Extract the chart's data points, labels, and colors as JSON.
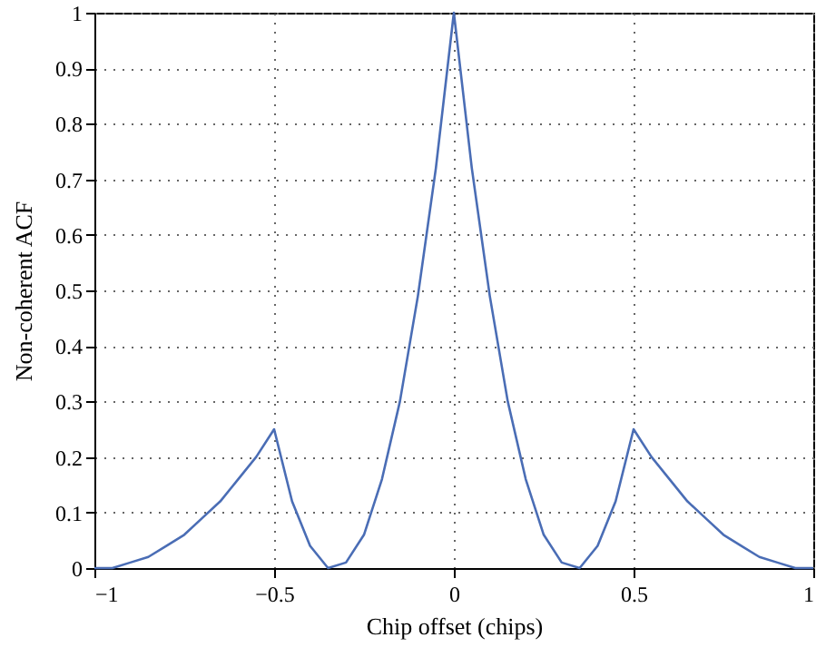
{
  "chart_data": {
    "type": "line",
    "xlabel": "Chip offset (chips)",
    "ylabel": "Non-coherent ACF",
    "x": [
      -1,
      -0.95,
      -0.9,
      -0.85,
      -0.8,
      -0.75,
      -0.7,
      -0.65,
      -0.6,
      -0.55,
      -0.5,
      -0.45,
      -0.4,
      -0.35,
      -0.3,
      -0.25,
      -0.2,
      -0.15,
      -0.1,
      -0.05,
      0,
      0.05,
      0.1,
      0.15,
      0.2,
      0.25,
      0.3,
      0.35,
      0.4,
      0.45,
      0.5,
      0.55,
      0.6,
      0.65,
      0.7,
      0.75,
      0.8,
      0.85,
      0.9,
      0.95,
      1
    ],
    "series": [
      {
        "color": "#4a6db5",
        "values": [
          0,
          0,
          0.01,
          0.02,
          0.04,
          0.06,
          0.09,
          0.12,
          0.16,
          0.2,
          0.25,
          0.12,
          0.04,
          0,
          0.01,
          0.06,
          0.16,
          0.3,
          0.49,
          0.72,
          1,
          0.72,
          0.49,
          0.3,
          0.16,
          0.06,
          0.01,
          0,
          0.04,
          0.12,
          0.25,
          0.2,
          0.16,
          0.12,
          0.09,
          0.06,
          0.04,
          0.02,
          0.01,
          0,
          0
        ]
      }
    ],
    "xlim": [
      -1,
      1
    ],
    "xticks": [
      {
        "value": -1,
        "label": "−1"
      },
      {
        "value": -0.5,
        "label": "−0.5"
      },
      0,
      0.5,
      1
    ],
    "ylim": [
      0,
      1
    ],
    "yticks": [
      0,
      0.1,
      0.2,
      0.3,
      0.4,
      0.5,
      0.6,
      0.7,
      0.8,
      0.9,
      1
    ],
    "grid": true,
    "line_style": "solid"
  }
}
